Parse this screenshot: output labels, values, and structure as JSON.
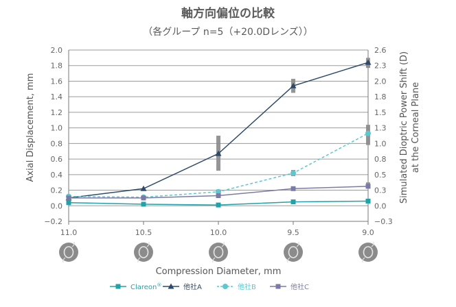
{
  "chart_data": {
    "type": "line",
    "title": "軸方向偏位の比較",
    "subtitle": "（各グループ n=5（+20.0Dレンズ））",
    "xlabel": "Compression Diameter, mm",
    "ylabel": "Axial Displacement, mm",
    "y2label_line1": "Simulated Dioptric Power Shift (D)",
    "y2label_line2": "at the Corneal Plane",
    "x": [
      11.0,
      10.5,
      10.0,
      9.5,
      9.0
    ],
    "x_tick_labels": [
      "11.0",
      "10.5",
      "10.0",
      "9.5",
      "9.0"
    ],
    "x_reversed": true,
    "ylim": [
      -0.2,
      2.0
    ],
    "y_ticks": [
      "−0.2",
      "0.0",
      "0.2",
      "0.4",
      "0.6",
      "0.8",
      "1.0",
      "1.2",
      "1.4",
      "1.6",
      "1.8",
      "2.0"
    ],
    "y2lim": [
      -0.3,
      2.6
    ],
    "y2_ticks": [
      "−0.3",
      "0.0",
      "0.3",
      "0.5",
      "0.8",
      "1.0",
      "1.3",
      "1.5",
      "1.8",
      "2.0",
      "2.3",
      "2.6"
    ],
    "grid": true,
    "legend_position": "bottom",
    "series": [
      {
        "name": "Clareon",
        "name_sup": "®",
        "color": "#1fa3a8",
        "marker": "square",
        "dash": "solid",
        "values": [
          0.04,
          0.02,
          0.01,
          0.05,
          0.06
        ]
      },
      {
        "name": "他社A",
        "color": "#2e4a6b",
        "marker": "triangle",
        "dash": "solid",
        "values": [
          0.1,
          0.22,
          0.67,
          1.54,
          1.84
        ]
      },
      {
        "name": "他社B",
        "color": "#5cc7cf",
        "marker": "circle",
        "dash": "dashed",
        "values": [
          0.12,
          0.11,
          0.18,
          0.42,
          0.93
        ]
      },
      {
        "name": "他社C",
        "color": "#7a7aa6",
        "marker": "square",
        "dash": "solid",
        "values": [
          0.1,
          0.1,
          0.13,
          0.22,
          0.25
        ]
      }
    ],
    "error_bars": [
      {
        "x": 10.0,
        "low": 0.45,
        "high": 0.9
      },
      {
        "x": 9.5,
        "low": 1.45,
        "high": 1.63
      },
      {
        "x": 9.0,
        "low": 1.77,
        "high": 1.9
      },
      {
        "x": 9.0,
        "low": 0.78,
        "high": 1.04
      },
      {
        "x": 9.5,
        "low": 0.38,
        "high": 0.46
      },
      {
        "x": 10.0,
        "low": 0.16,
        "high": 0.21
      },
      {
        "x": 9.0,
        "low": 0.23,
        "high": 0.3
      },
      {
        "x": 11.0,
        "low": 0.08,
        "high": 0.12
      }
    ]
  }
}
